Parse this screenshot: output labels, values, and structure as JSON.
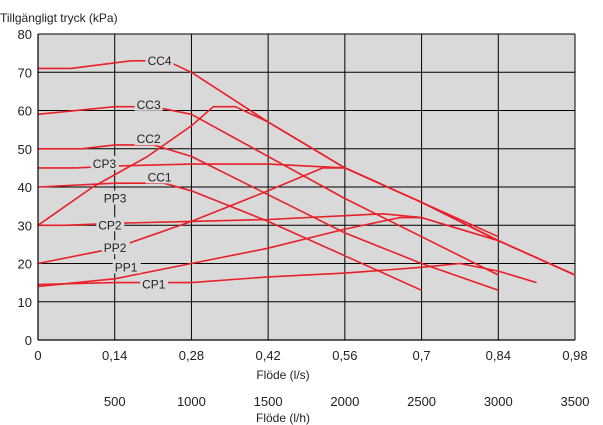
{
  "chart_data": {
    "type": "line",
    "ylabel": "Tillgängligt tryck (kPa)",
    "xlabel": "Flöde (l/s)",
    "x2label": "Flöde (l/h)",
    "xlim": [
      0,
      0.98
    ],
    "ylim": [
      0,
      80
    ],
    "x_ticks": [
      "0",
      "0,14",
      "0,28",
      "0,42",
      "0,56",
      "0,7",
      "0,84",
      "0,98"
    ],
    "x_tick_values": [
      0,
      0.14,
      0.28,
      0.42,
      0.56,
      0.7,
      0.84,
      0.98
    ],
    "y_ticks": [
      "0",
      "10",
      "20",
      "30",
      "40",
      "50",
      "60",
      "70",
      "80"
    ],
    "y_tick_values": [
      0,
      10,
      20,
      30,
      40,
      50,
      60,
      70,
      80
    ],
    "x2_ticks": [
      "500",
      "1000",
      "1500",
      "2000",
      "2500",
      "3000",
      "3500"
    ],
    "x2_tick_values": [
      500,
      1000,
      1500,
      2000,
      2500,
      3000,
      3500
    ],
    "x2_range": [
      0,
      3500
    ],
    "grid": true,
    "line_color": "#e8202a",
    "series": [
      {
        "name": "CC4",
        "x": [
          0,
          0.06,
          0.17,
          0.235,
          0.28,
          0.42,
          0.56,
          0.7,
          0.84,
          0.98
        ],
        "y": [
          71,
          71,
          73,
          73,
          70,
          57,
          45,
          36,
          26,
          17
        ],
        "label_x": 0.2,
        "label_y": 73
      },
      {
        "name": "CC3",
        "x": [
          0,
          0.14,
          0.21,
          0.28,
          0.42,
          0.56,
          0.7,
          0.84
        ],
        "y": [
          59,
          61,
          61,
          59,
          48,
          37,
          27,
          17
        ],
        "label_x": 0.18,
        "label_y": 61.5
      },
      {
        "name": "CC2",
        "x": [
          0,
          0.08,
          0.14,
          0.21,
          0.28,
          0.42,
          0.56,
          0.7,
          0.84
        ],
        "y": [
          50,
          50,
          51,
          51,
          48,
          38,
          28,
          20,
          13
        ],
        "label_x": 0.18,
        "label_y": 52.5
      },
      {
        "name": "CC1",
        "x": [
          0,
          0.14,
          0.23,
          0.28,
          0.42,
          0.56,
          0.7
        ],
        "y": [
          40,
          41,
          41,
          39,
          31,
          22,
          13
        ],
        "label_x": 0.2,
        "label_y": 42.5
      },
      {
        "name": "CP3",
        "x": [
          0,
          0.07,
          0.14,
          0.28,
          0.42,
          0.56,
          0.7,
          0.84,
          0.98
        ],
        "y": [
          45,
          45,
          45.5,
          46,
          46,
          45,
          36,
          26,
          17
        ],
        "label_x": 0.1,
        "label_y": 46
      },
      {
        "name": "PP3",
        "x": [
          0,
          0.1,
          0.2,
          0.28,
          0.32,
          0.36,
          0.42,
          0.56,
          0.7,
          0.84
        ],
        "y": [
          30,
          40,
          48,
          56,
          61,
          61,
          57,
          45,
          36,
          27
        ],
        "label_x": 0.12,
        "label_y": 37
      },
      {
        "name": "CP2",
        "x": [
          0,
          0.05,
          0.14,
          0.28,
          0.42,
          0.56,
          0.63,
          0.7,
          0.84,
          0.98
        ],
        "y": [
          30,
          30,
          30.5,
          31,
          31.5,
          32.5,
          33,
          32,
          26,
          17
        ],
        "label_x": 0.11,
        "label_y": 30
      },
      {
        "name": "PP2",
        "x": [
          0,
          0.14,
          0.28,
          0.42,
          0.52,
          0.56,
          0.7,
          0.84
        ],
        "y": [
          20,
          24,
          31,
          39,
          45,
          45,
          36,
          26
        ],
        "label_x": 0.12,
        "label_y": 24
      },
      {
        "name": "PP1",
        "x": [
          0,
          0.14,
          0.28,
          0.42,
          0.56,
          0.66,
          0.7,
          0.84
        ],
        "y": [
          14,
          16,
          20,
          24,
          29,
          32,
          32,
          26
        ],
        "label_x": 0.14,
        "label_y": 19
      },
      {
        "name": "CP1",
        "x": [
          0,
          0.14,
          0.21,
          0.28,
          0.42,
          0.56,
          0.7,
          0.77,
          0.84,
          0.91
        ],
        "y": [
          14.5,
          15,
          15,
          15,
          16.5,
          17.5,
          19,
          20,
          18,
          15
        ],
        "label_x": 0.19,
        "label_y": 14.5
      }
    ]
  }
}
